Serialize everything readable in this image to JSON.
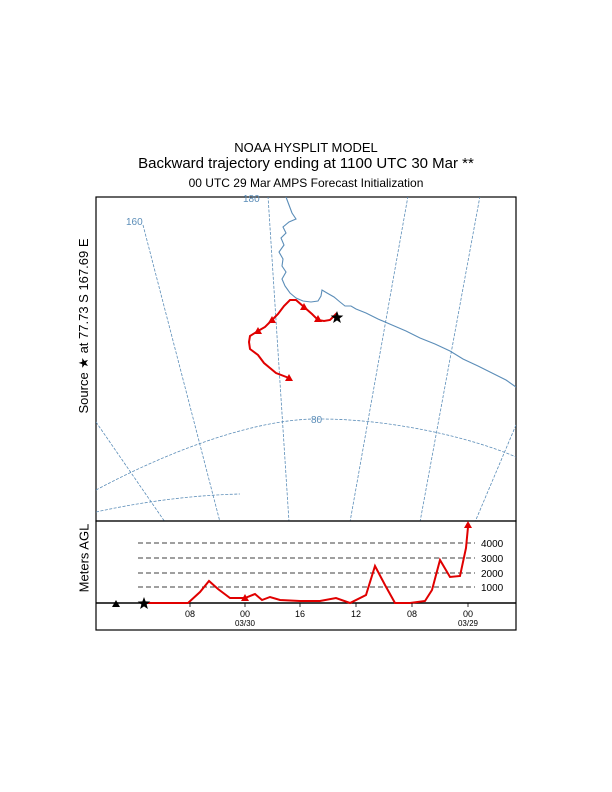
{
  "header": {
    "line1": "NOAA HYSPLIT MODEL",
    "line2": "Backward trajectory ending at 1100 UTC 30 Mar **",
    "line3": "00 UTC 29 Mar    AMPS  Forecast Initialization"
  },
  "source_label": "Source ★  at   77.73 S  167.69 E",
  "map": {
    "meridian_labels": [
      "180",
      "160"
    ],
    "latitude_label": "80",
    "grid_color": "#5b8db8",
    "coast_color": "#5b8db8",
    "trajectory_color": "#e00000",
    "source_icon": "star-icon"
  },
  "height_panel": {
    "ylabel": "Meters AGL",
    "height_labels": [
      "4000",
      "3000",
      "2000",
      "1000"
    ],
    "time_labels": [
      "08",
      "00",
      "16",
      "12",
      "08",
      "00"
    ],
    "date_labels": [
      "03/30",
      "03/29"
    ]
  }
}
